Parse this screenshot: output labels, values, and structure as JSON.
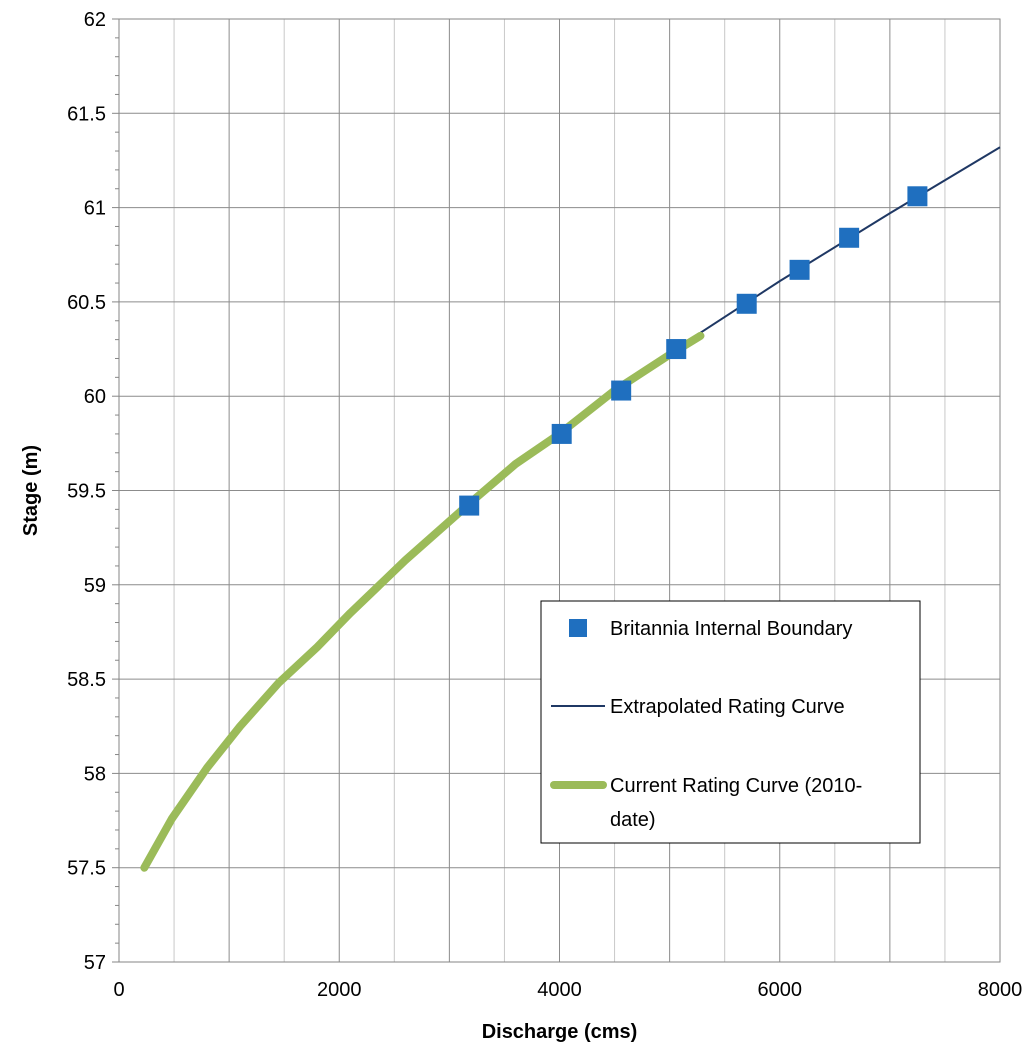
{
  "chart_data": {
    "type": "scatter",
    "title": "",
    "xlabel": "Discharge (cms)",
    "ylabel": "Stage (m)",
    "xlim": [
      0,
      8000
    ],
    "ylim": [
      57,
      62
    ],
    "x_ticks": [
      "0",
      "2000",
      "4000",
      "6000",
      "8000"
    ],
    "y_ticks": [
      "57",
      "57.5",
      "58",
      "58.5",
      "59",
      "59.5",
      "60",
      "60.5",
      "61",
      "61.5",
      "62"
    ],
    "grid": true,
    "legend_position": "right",
    "series": [
      {
        "name": "Britannia Internal Boundary",
        "kind": "markers",
        "color": "#1f6fbf",
        "x": [
          3180,
          4020,
          4560,
          5060,
          5700,
          6180,
          6630,
          7250
        ],
        "y": [
          59.42,
          59.8,
          60.03,
          60.25,
          60.49,
          60.67,
          60.84,
          61.06
        ]
      },
      {
        "name": "Extrapolated Rating Curve",
        "kind": "line",
        "color": "#1f3864",
        "x": [
          3000,
          4000,
          5000,
          6000,
          7000,
          8000
        ],
        "y": [
          59.34,
          59.81,
          60.23,
          60.61,
          60.97,
          61.32
        ]
      },
      {
        "name": "Current Rating Curve (2010-date)",
        "legend_lines": [
          "Current Rating Curve (2010-",
          "date)"
        ],
        "kind": "line",
        "color": "#9bbb59",
        "x": [
          230,
          480,
          800,
          1100,
          1450,
          1800,
          2100,
          2600,
          3200,
          3600,
          4000,
          4500,
          5000,
          5280
        ],
        "y": [
          57.5,
          57.76,
          58.03,
          58.25,
          58.48,
          58.67,
          58.85,
          59.13,
          59.44,
          59.64,
          59.8,
          60.03,
          60.22,
          60.32
        ]
      }
    ]
  }
}
